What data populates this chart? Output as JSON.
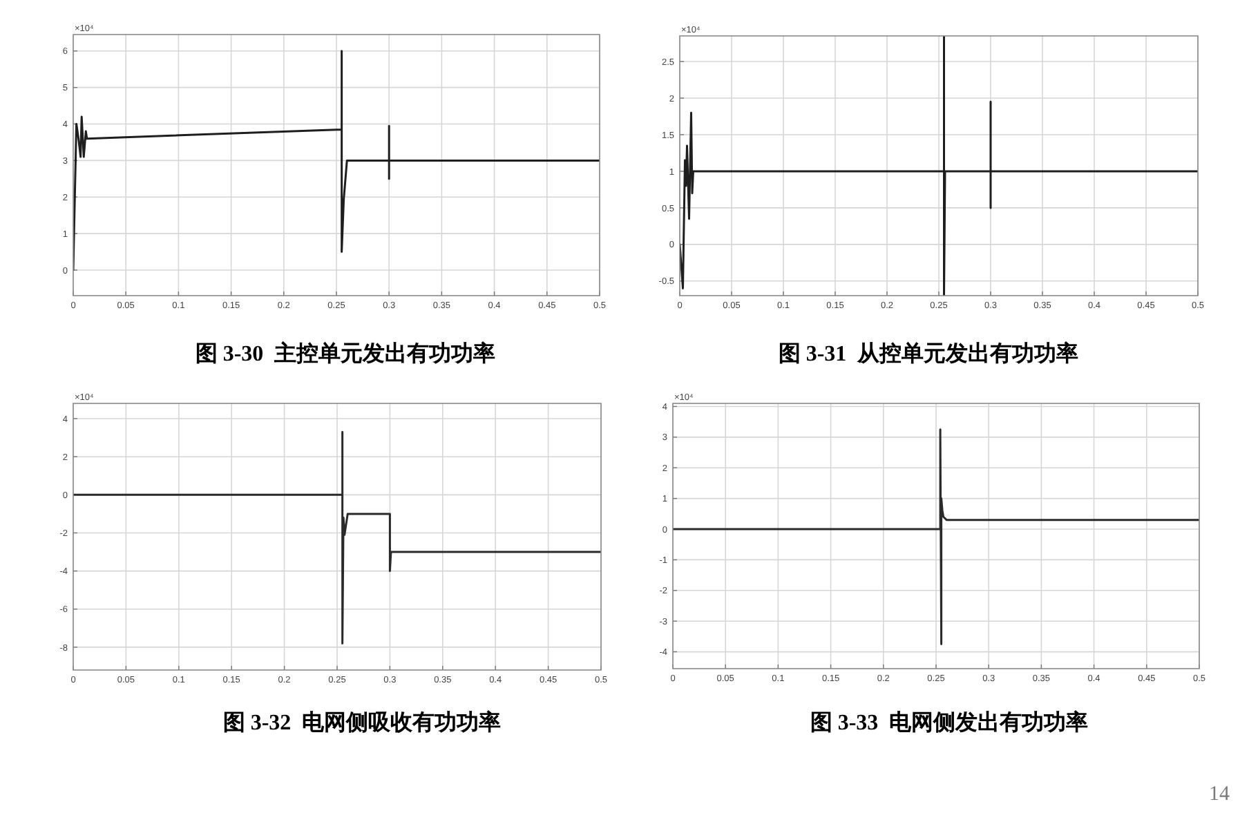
{
  "chart_data": [
    {
      "type": "line",
      "title": "图 3-30  主控单元发出有功功率",
      "x": [
        0,
        0.003,
        0.005,
        0.007,
        0.008,
        0.01,
        0.012,
        0.013,
        0.255,
        0.255,
        0.255,
        0.257,
        0.26,
        0.3,
        0.3,
        0.3,
        0.3,
        0.5
      ],
      "series": [
        {
          "color": "#1e1e1e",
          "values": [
            0,
            4.0,
            3.6,
            3.1,
            4.2,
            3.1,
            3.8,
            3.6,
            3.85,
            6.0,
            0.5,
            1.95,
            3.0,
            3.0,
            3.95,
            2.5,
            3.0,
            3.0
          ]
        }
      ],
      "xlim": [
        0,
        0.5
      ],
      "ylim": [
        -0.7,
        6.45
      ],
      "xticks": [
        0,
        0.05,
        0.1,
        0.15,
        0.2,
        0.25,
        0.3,
        0.35,
        0.4,
        0.45,
        0.5
      ],
      "yticks": [
        0,
        1,
        2,
        3,
        4,
        5,
        6
      ],
      "grid": true,
      "annotations": [
        "×10⁴"
      ]
    },
    {
      "type": "line",
      "title": "图 3-31  从控单元发出有功功率",
      "x": [
        0,
        0.003,
        0.005,
        0.006,
        0.007,
        0.009,
        0.011,
        0.012,
        0.013,
        0.255,
        0.255,
        0.255,
        0.256,
        0.3,
        0.3,
        0.3,
        0.3,
        0.5
      ],
      "series": [
        {
          "color": "#1e1e1e",
          "values": [
            0,
            -0.6,
            1.15,
            0.8,
            1.35,
            0.35,
            1.8,
            0.7,
            1.0,
            1.0,
            2.85,
            -0.7,
            1.0,
            1.0,
            1.95,
            0.5,
            1.0,
            1.0
          ]
        }
      ],
      "xlim": [
        0,
        0.5
      ],
      "ylim": [
        -0.7,
        2.85
      ],
      "xticks": [
        0,
        0.05,
        0.1,
        0.15,
        0.2,
        0.25,
        0.3,
        0.35,
        0.4,
        0.45,
        0.5
      ],
      "yticks": [
        -0.5,
        0,
        0.5,
        1,
        1.5,
        2,
        2.5
      ],
      "grid": true,
      "annotations": [
        "×10⁴"
      ]
    },
    {
      "type": "line",
      "title": "图 3-32  电网侧吸收有功功率",
      "x": [
        0,
        0.255,
        0.255,
        0.255,
        0.256,
        0.257,
        0.26,
        0.3,
        0.3,
        0.301,
        0.5
      ],
      "series": [
        {
          "color": "#2a2a2a",
          "values": [
            0,
            0,
            3.3,
            -7.8,
            -1.2,
            -2.1,
            -1.0,
            -1.0,
            -4.0,
            -3.0,
            -3.0
          ]
        }
      ],
      "xlim": [
        0,
        0.5
      ],
      "ylim": [
        -9.2,
        4.8
      ],
      "xticks": [
        0,
        0.05,
        0.1,
        0.15,
        0.2,
        0.25,
        0.3,
        0.35,
        0.4,
        0.45,
        0.5
      ],
      "yticks": [
        -8,
        -6,
        -4,
        -2,
        0,
        2,
        4
      ],
      "grid": true,
      "annotations": [
        "×10⁴"
      ]
    },
    {
      "type": "line",
      "title": "图 3-33  电网侧发出有功功率",
      "x": [
        0,
        0.254,
        0.254,
        0.255,
        0.255,
        0.256,
        0.257,
        0.26,
        0.5
      ],
      "series": [
        {
          "color": "#2a2a2a",
          "values": [
            0,
            0,
            3.25,
            -3.75,
            1.0,
            0.6,
            0.4,
            0.3,
            0.3
          ]
        }
      ],
      "xlim": [
        0,
        0.5
      ],
      "ylim": [
        -4.55,
        4.1
      ],
      "xticks": [
        0,
        0.05,
        0.1,
        0.15,
        0.2,
        0.25,
        0.3,
        0.35,
        0.4,
        0.45,
        0.5
      ],
      "yticks": [
        -4,
        -3,
        -2,
        -1,
        0,
        1,
        2,
        3,
        4
      ],
      "grid": true,
      "annotations": [
        "×10⁴",
        "14"
      ]
    }
  ]
}
